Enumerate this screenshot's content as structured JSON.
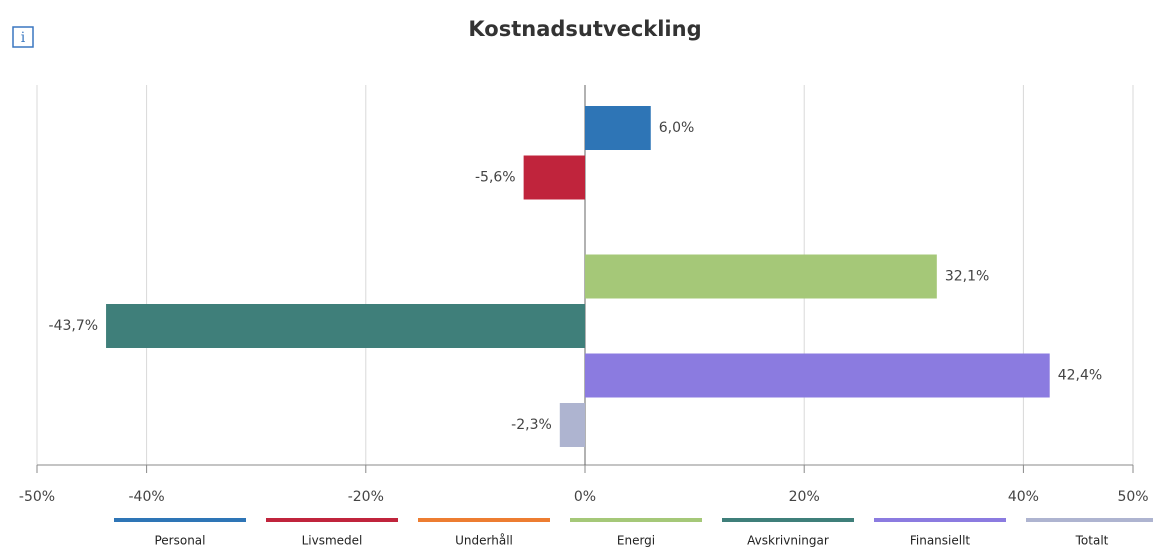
{
  "info_label": "i",
  "chart_data": {
    "type": "hbar",
    "title": "Kostnadsutveckling",
    "categories": [
      "Personal",
      "Livsmedel",
      "Underhåll",
      "Energi",
      "Avskrivningar",
      "Finansiellt",
      "Totalt"
    ],
    "values": [
      6.0,
      -5.6,
      null,
      32.1,
      -43.7,
      42.4,
      -2.3
    ],
    "value_labels": [
      "6,0%",
      "-5,6%",
      null,
      "32,1%",
      "-43,7%",
      "42,4%",
      "-2,3%"
    ],
    "colors": [
      "#2e75b6",
      "#c0243c",
      "#ed7d31",
      "#a5c878",
      "#3f7f7a",
      "#8b7be0",
      "#aeb4d0"
    ],
    "xlim": [
      -50,
      50
    ],
    "xticks": [
      {
        "value": -50,
        "label": "-50%"
      },
      {
        "value": -40,
        "label": "-40%"
      },
      {
        "value": -20,
        "label": "-20%"
      },
      {
        "value": 0,
        "label": "0%"
      },
      {
        "value": 20,
        "label": "20%"
      },
      {
        "value": 40,
        "label": "40%"
      },
      {
        "value": 50,
        "label": "50%"
      }
    ],
    "grid": true,
    "legend": "bottom"
  }
}
